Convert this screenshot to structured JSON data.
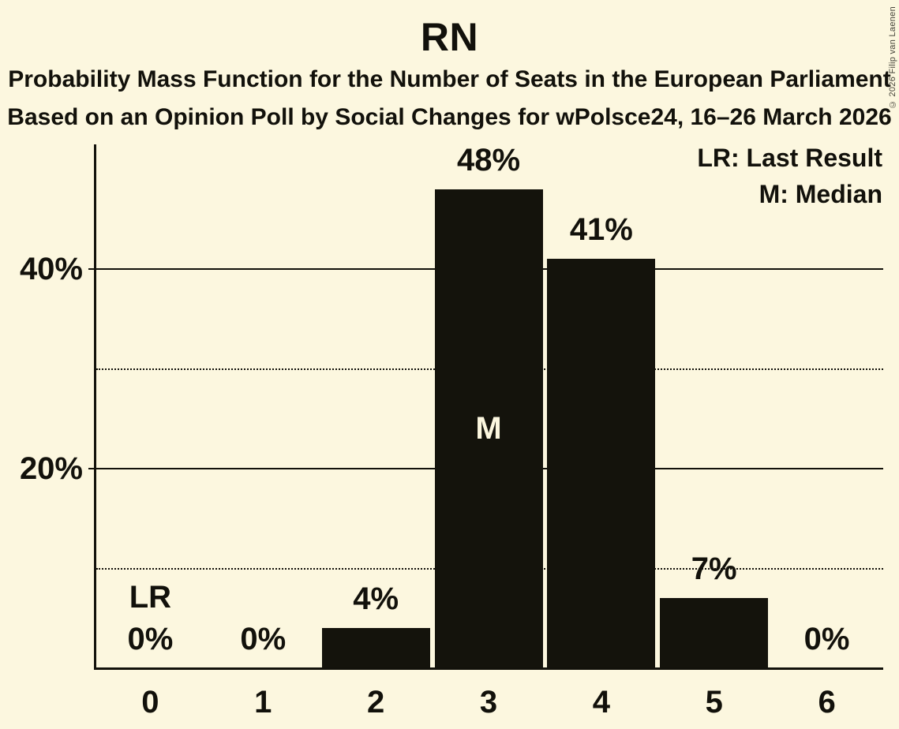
{
  "header": {
    "title": "RN",
    "subtitle1": "Probability Mass Function for the Number of Seats in the European Parliament",
    "subtitle2": "Based on an Opinion Poll by Social Changes for wPolsce24, 16–26 March 2026"
  },
  "legend": {
    "lr": "LR: Last Result",
    "m": "M: Median"
  },
  "copyright": "© 2026 Filip van Laenen",
  "colors": {
    "background": "#FCF7DF",
    "ink": "#12110B",
    "bar": "#14130C",
    "bar_label_text": "#FCF7DF",
    "copyright_text": "#45443A"
  },
  "chart_data": {
    "type": "bar",
    "title": "RN",
    "categories": [
      "0",
      "1",
      "2",
      "3",
      "4",
      "5",
      "6"
    ],
    "values": [
      0,
      0,
      4,
      48,
      41,
      7,
      0
    ],
    "bar_labels": [
      "0%",
      "0%",
      "4%",
      "48%",
      "41%",
      "7%",
      "0%"
    ],
    "series_name": "Probability of number of seats",
    "ylim": [
      0,
      52.5
    ],
    "yticks": [
      {
        "value": 10,
        "label": "",
        "style": "dotted"
      },
      {
        "value": 20,
        "label": "20%",
        "style": "solid"
      },
      {
        "value": 30,
        "label": "",
        "style": "dotted"
      },
      {
        "value": 40,
        "label": "40%",
        "style": "solid"
      }
    ],
    "grid": "horizontal-only",
    "legend_position": "top-right",
    "annotations": {
      "last_result_seat_index": 0,
      "last_result_label": "LR",
      "median_seat_index": 3,
      "median_label": "M"
    }
  }
}
